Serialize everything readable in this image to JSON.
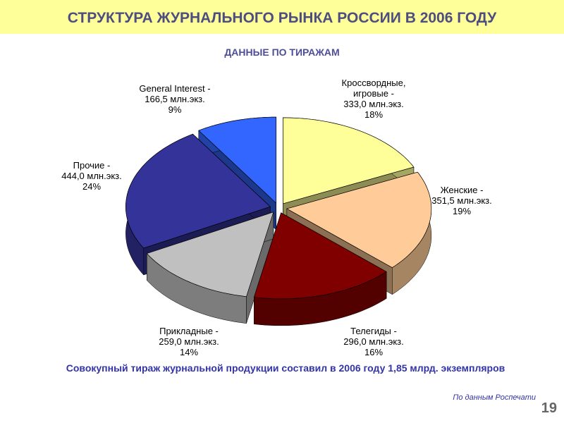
{
  "chart_data": {
    "type": "pie",
    "title": "СТРУКТУРА ЖУРНАЛЬНОГО РЫНКА РОССИИ В 2006 ГОДУ",
    "subtitle": "ДАННЫЕ ПО ТИРАЖАМ",
    "categories": [
      "Кроссвордные, игровые -",
      "Женские -",
      "Телегиды -",
      "Прикладные -",
      "Прочие -",
      "General Interest -"
    ],
    "sublabels": [
      "333,0 млн.экз.",
      "351,5 млн.экз.",
      "296,0 млн.экз.",
      "259,0 млн.экз.",
      "444,0 млн.экз.",
      "166,5 млн.экз."
    ],
    "values": [
      18,
      19,
      16,
      14,
      24,
      9
    ],
    "value_labels": [
      "18%",
      "19%",
      "16%",
      "14%",
      "24%",
      "9%"
    ],
    "colors": [
      "#ffff99",
      "#ffcc99",
      "#800000",
      "#c0c0c0",
      "#333399",
      "#3366ff"
    ],
    "note": "Совокупный тираж журнальной продукции составил в 2006 году 1,85 млрд. экземпляров",
    "source": "По данным Роспечати",
    "page_number": "19"
  }
}
